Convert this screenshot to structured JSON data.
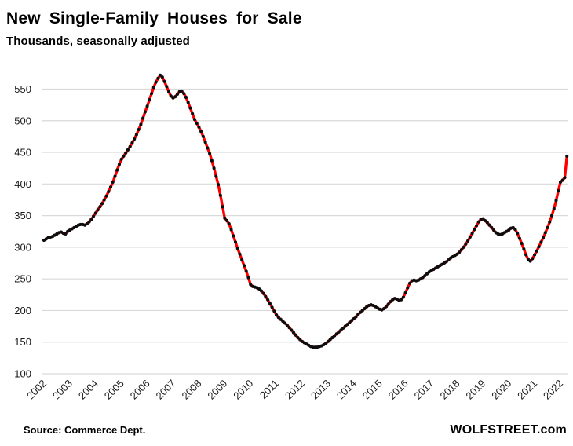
{
  "chart_data": {
    "type": "line",
    "title": "New Single-Family Houses for Sale",
    "subtitle": "Thousands, seasonally adjusted",
    "ylabel": "",
    "xlabel": "",
    "ylim": [
      100,
      550
    ],
    "y_ticks": [
      100,
      150,
      200,
      250,
      300,
      350,
      400,
      450,
      500,
      550
    ],
    "x_tick_labels": [
      "2002",
      "2003",
      "2004",
      "2005",
      "2006",
      "2007",
      "2008",
      "2009",
      "2010",
      "2011",
      "2012",
      "2013",
      "2014",
      "2015",
      "2016",
      "2017",
      "2018",
      "2019",
      "2020",
      "2021",
      "2022"
    ],
    "x_start_year": 2002,
    "points_per_month": 1,
    "grid": "horizontal-only",
    "legend": "none",
    "line_color": "#fe0000",
    "marker_color": "#0d0d0d",
    "gridline_color": "#d9d9d9",
    "series": [
      {
        "name": "New single-family houses for sale (thousands, SA)",
        "start": "2002-01",
        "end": "2022-04",
        "values": [
          311,
          313,
          315,
          316,
          317,
          319,
          321,
          323,
          324,
          322,
          321,
          325,
          327,
          329,
          331,
          333,
          335,
          336,
          336,
          335,
          337,
          340,
          344,
          349,
          354,
          359,
          364,
          369,
          375,
          381,
          388,
          395,
          403,
          412,
          422,
          431,
          439,
          444,
          449,
          454,
          459,
          465,
          471,
          478,
          486,
          494,
          504,
          514,
          523,
          533,
          543,
          553,
          561,
          567,
          572,
          569,
          562,
          554,
          546,
          539,
          536,
          538,
          542,
          546,
          547,
          543,
          537,
          529,
          520,
          511,
          502,
          496,
          490,
          483,
          475,
          466,
          457,
          448,
          437,
          425,
          412,
          399,
          382,
          364,
          346,
          342,
          337,
          328,
          318,
          308,
          298,
          289,
          280,
          271,
          262,
          252,
          241,
          238,
          237,
          236,
          234,
          231,
          227,
          222,
          217,
          211,
          205,
          199,
          193,
          189,
          186,
          183,
          180,
          177,
          173,
          169,
          165,
          161,
          157,
          154,
          151,
          149,
          147,
          145,
          143,
          142,
          142,
          142,
          143,
          144,
          146,
          148,
          151,
          154,
          157,
          160,
          163,
          166,
          169,
          172,
          175,
          178,
          181,
          184,
          187,
          190,
          194,
          197,
          200,
          203,
          206,
          208,
          209,
          208,
          206,
          204,
          202,
          201,
          203,
          206,
          210,
          214,
          217,
          219,
          218,
          216,
          217,
          221,
          228,
          236,
          243,
          247,
          248,
          247,
          248,
          250,
          252,
          255,
          258,
          261,
          263,
          265,
          267,
          269,
          271,
          273,
          275,
          277,
          280,
          283,
          285,
          287,
          289,
          292,
          296,
          300,
          305,
          310,
          316,
          322,
          328,
          334,
          340,
          344,
          345,
          342,
          339,
          335,
          331,
          327,
          323,
          321,
          320,
          321,
          323,
          325,
          327,
          330,
          331,
          328,
          322,
          314,
          306,
          297,
          288,
          281,
          278,
          282,
          288,
          294,
          301,
          308,
          315,
          323,
          331,
          340,
          350,
          361,
          374,
          389,
          403,
          406,
          410,
          444
        ]
      }
    ]
  },
  "footer": {
    "source": "Source: Commerce Dept.",
    "branding": "WOLFSTREET.com"
  }
}
